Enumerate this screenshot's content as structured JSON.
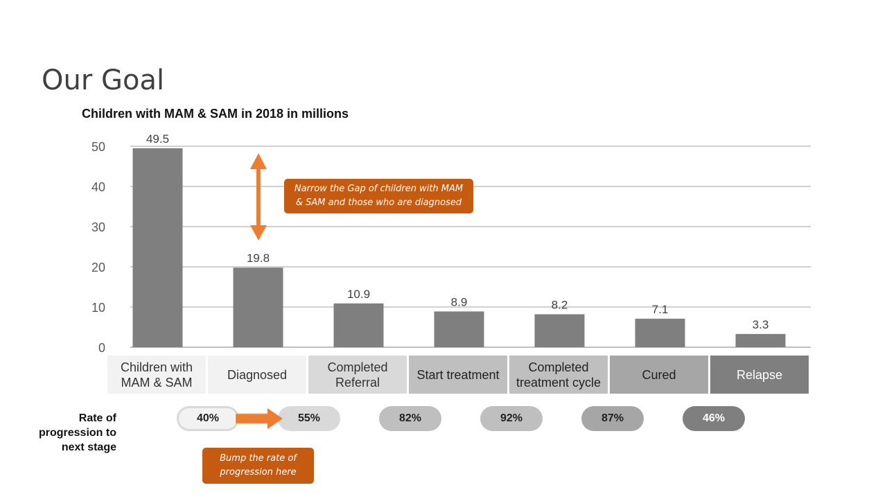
{
  "page": {
    "title": "Our Goal"
  },
  "chart_data": {
    "type": "bar",
    "title": "Children with MAM & SAM in 2018 in millions",
    "categories": [
      "Children with MAM & SAM",
      "Diagnosed",
      "Completed Referral",
      "Start treatment",
      "Completed treatment cycle",
      "Cured",
      "Relapse"
    ],
    "values": [
      49.5,
      19.8,
      10.9,
      8.9,
      8.2,
      7.1,
      3.3
    ],
    "value_labels": [
      "49.5",
      "19.8",
      "10.9",
      "8.9",
      "8.2",
      "7.1",
      "3.3"
    ],
    "yticks": [
      "0",
      "10",
      "20",
      "30",
      "40",
      "50"
    ],
    "ylim": [
      0,
      50
    ],
    "grid": true,
    "bar_color": "#7f7f7f"
  },
  "stages": [
    {
      "label": "Children with MAM & SAM",
      "bg": "#f2f2f2",
      "fg": "#333333"
    },
    {
      "label": "Diagnosed",
      "bg": "#f2f2f2",
      "fg": "#333333"
    },
    {
      "label": "Completed Referral",
      "bg": "#d9d9d9",
      "fg": "#333333"
    },
    {
      "label": "Start treatment",
      "bg": "#bfbfbf",
      "fg": "#222222"
    },
    {
      "label": "Completed treatment cycle",
      "bg": "#bfbfbf",
      "fg": "#222222"
    },
    {
      "label": "Cured",
      "bg": "#a6a6a6",
      "fg": "#222222"
    },
    {
      "label": "Relapse",
      "bg": "#7f7f7f",
      "fg": "#ffffff"
    }
  ],
  "rates": {
    "label": "Rate of progression to next stage",
    "items": [
      {
        "value": "40%",
        "bg": "#f2f2f2",
        "highlight": true
      },
      {
        "value": "55%",
        "bg": "#d9d9d9"
      },
      {
        "value": "82%",
        "bg": "#bfbfbf"
      },
      {
        "value": "92%",
        "bg": "#bfbfbf"
      },
      {
        "value": "87%",
        "bg": "#a6a6a6"
      },
      {
        "value": "46%",
        "bg": "#7f7f7f"
      }
    ]
  },
  "callouts": {
    "gap": "Narrow the Gap of children with MAM & SAM and those who are diagnosed",
    "rate": "Bump the rate of progression here"
  },
  "colors": {
    "accent": "#ed7d31",
    "callout": "#c55a11"
  }
}
